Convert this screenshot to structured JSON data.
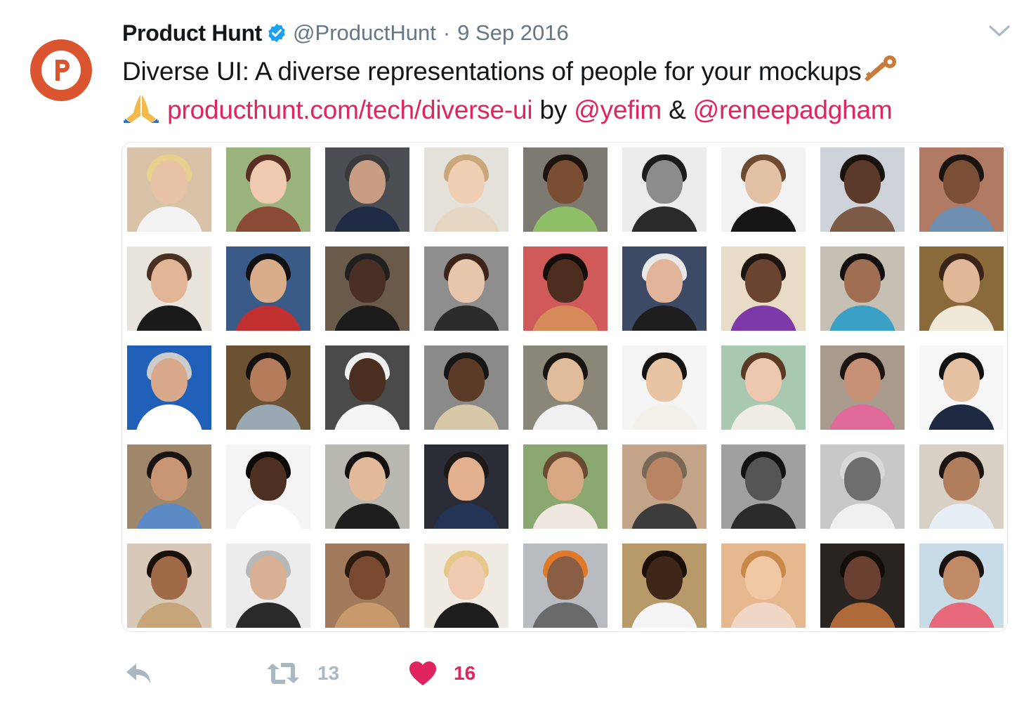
{
  "tweet": {
    "author_name": "Product Hunt",
    "author_handle": "@ProductHunt",
    "separator": "·",
    "date": "9 Sep 2016",
    "text_line1": "Diverse UI: A diverse representations of people for your mockups",
    "link_url": "producthunt.com/tech/diverse-ui",
    "by_word": " by ",
    "mention1": "@yefim",
    "amp": " & ",
    "mention2": "@reneepadgham",
    "retweet_count": "13",
    "like_count": "16"
  },
  "icons": {
    "avatar": "product-hunt-logo",
    "verified": "verified-badge-icon",
    "caret": "chevron-down-icon",
    "key_emoji": "key-emoji",
    "pray_emoji": "folded-hands-emoji",
    "reply": "reply-icon",
    "retweet": "retweet-icon",
    "like": "heart-icon"
  },
  "colors": {
    "brand": "#da552f",
    "link": "#e0245e",
    "verified": "#1da1f2",
    "muted": "#657786",
    "action_icon": "#aab8c2",
    "like": "#e0245e"
  },
  "media": {
    "rows": 5,
    "cols": 9,
    "faces": [
      {
        "bg": "#d9c3a8",
        "skin": "#e8c3a5",
        "hair": "#e6d08c",
        "shirt": "#f2f2f2"
      },
      {
        "bg": "#9bb37c",
        "skin": "#efc9b0",
        "hair": "#5a2e22",
        "shirt": "#8a4a36"
      },
      {
        "bg": "#4a4e52",
        "skin": "#c99c84",
        "hair": "#3a3a3a",
        "shirt": "#1f2b44"
      },
      {
        "bg": "#e4e0da",
        "skin": "#f0cfb4",
        "hair": "#c9a77a",
        "shirt": "#e6d6c2"
      },
      {
        "bg": "#7d7a72",
        "skin": "#7a4e33",
        "hair": "#1d1410",
        "shirt": "#8fbf66"
      },
      {
        "bg": "#ececec",
        "skin": "#8c8c8c",
        "hair": "#1b1b1b",
        "shirt": "#2a2a2a"
      },
      {
        "bg": "#f2f2f2",
        "skin": "#e2c1a4",
        "hair": "#6e4a32",
        "shirt": "#151515"
      },
      {
        "bg": "#cdd3d8",
        "skin": "#5b3a2a",
        "hair": "#1a120d",
        "shirt": "#7c5a46"
      },
      {
        "bg": "#b07a64",
        "skin": "#7a4f36",
        "hair": "#1a1310",
        "shirt": "#6e8fb0"
      },
      {
        "bg": "#e8e4dc",
        "skin": "#e2b596",
        "hair": "#4a3020",
        "shirt": "#1a1a1a"
      },
      {
        "bg": "#3a5a88",
        "skin": "#d9ad8a",
        "hair": "#111111",
        "shirt": "#c03030"
      },
      {
        "bg": "#6a5a4a",
        "skin": "#4a3024",
        "hair": "#202020",
        "shirt": "#1c1c1c"
      },
      {
        "bg": "#8e8e8e",
        "skin": "#e8c6ac",
        "hair": "#3d2418",
        "shirt": "#2c2c2c"
      },
      {
        "bg": "#d05a5a",
        "skin": "#4d2e1e",
        "hair": "#140e0a",
        "shirt": "#d68a5a"
      },
      {
        "bg": "#3c4a66",
        "skin": "#e2b59a",
        "hair": "#e8e8e8",
        "shirt": "#1e1e1e"
      },
      {
        "bg": "#e8dcc6",
        "skin": "#6a4430",
        "hair": "#1e1410",
        "shirt": "#7c3aa8"
      },
      {
        "bg": "#c6c0b4",
        "skin": "#a06e52",
        "hair": "#151010",
        "shirt": "#3aa0c6"
      },
      {
        "bg": "#8a6a3a",
        "skin": "#e0b898",
        "hair": "#3a2418",
        "shirt": "#f0e8d8"
      },
      {
        "bg": "#2060b8",
        "skin": "#d8a88c",
        "hair": "#cccccc",
        "shirt": "#ffffff"
      },
      {
        "bg": "#6a5232",
        "skin": "#b47c5a",
        "hair": "#141010",
        "shirt": "#9aa8b4"
      },
      {
        "bg": "#4a4a4a",
        "skin": "#4a2e20",
        "hair": "#f0f0f0",
        "shirt": "#f4f4f4"
      },
      {
        "bg": "#8a8a88",
        "skin": "#5c3a28",
        "hair": "#161616",
        "shirt": "#d8c8a8"
      },
      {
        "bg": "#8a8678",
        "skin": "#e0bc9a",
        "hair": "#1a1410",
        "shirt": "#f0f0f0"
      },
      {
        "bg": "#f4f4f4",
        "skin": "#e8c4a4",
        "hair": "#161210",
        "shirt": "#f4f0ea"
      },
      {
        "bg": "#a8c8b0",
        "skin": "#ecc8ae",
        "hair": "#5a3a24",
        "shirt": "#f0ece4"
      },
      {
        "bg": "#a89a8c",
        "skin": "#c69074",
        "hair": "#1c1410",
        "shirt": "#e06a9a"
      },
      {
        "bg": "#f6f6f6",
        "skin": "#e6c2a2",
        "hair": "#111111",
        "shirt": "#1e2840"
      },
      {
        "bg": "#a0866a",
        "skin": "#c89674",
        "hair": "#1a1410",
        "shirt": "#5c8ac4"
      },
      {
        "bg": "#f4f4f4",
        "skin": "#4e3020",
        "hair": "#0e0a08",
        "shirt": "#ffffff"
      },
      {
        "bg": "#b8b8b0",
        "skin": "#e2ba9a",
        "hair": "#151010",
        "shirt": "#1e1e1e"
      },
      {
        "bg": "#2a2c36",
        "skin": "#e2b08e",
        "hair": "#1e1816",
        "shirt": "#243456"
      },
      {
        "bg": "#8aa870",
        "skin": "#d8a884",
        "hair": "#6a4a30",
        "shirt": "#f0e8e0"
      },
      {
        "bg": "#c4a488",
        "skin": "#b88464",
        "hair": "#7a6856",
        "shirt": "#3c3c3c"
      },
      {
        "bg": "#a0a0a0",
        "skin": "#555555",
        "hair": "#121212",
        "shirt": "#2a2a2a"
      },
      {
        "bg": "#c8c8c8",
        "skin": "#6e6e6e",
        "hair": "#d8d8d8",
        "shirt": "#f0f0f0"
      },
      {
        "bg": "#d8d0c4",
        "skin": "#b07e5c",
        "hair": "#1c1410",
        "shirt": "#e8eef6"
      },
      {
        "bg": "#d8c8b8",
        "skin": "#a06a48",
        "hair": "#1a1008",
        "shirt": "#c8a47a"
      },
      {
        "bg": "#ececec",
        "skin": "#d8b094",
        "hair": "#b8b8b8",
        "shirt": "#2a2a2a"
      },
      {
        "bg": "#a07a5a",
        "skin": "#7a4a30",
        "hair": "#2a1a10",
        "shirt": "#c89a6a"
      },
      {
        "bg": "#f0ebe2",
        "skin": "#f0cab0",
        "hair": "#e6c88a",
        "shirt": "#1e1e1e"
      },
      {
        "bg": "#b8bcc0",
        "skin": "#8a5e44",
        "hair": "#e07a2a",
        "shirt": "#6a6a6a"
      },
      {
        "bg": "#b89a6a",
        "skin": "#3e2618",
        "hair": "#1a1008",
        "shirt": "#f4f4f4"
      },
      {
        "bg": "#e6b890",
        "skin": "#f0c8a4",
        "hair": "#c8884a",
        "shirt": "#f0d6c4"
      },
      {
        "bg": "#2a2420",
        "skin": "#6a4030",
        "hair": "#140e0a",
        "shirt": "#b06a3a"
      },
      {
        "bg": "#c8dce8",
        "skin": "#c08a66",
        "hair": "#1a120e",
        "shirt": "#e86a7a"
      }
    ]
  }
}
